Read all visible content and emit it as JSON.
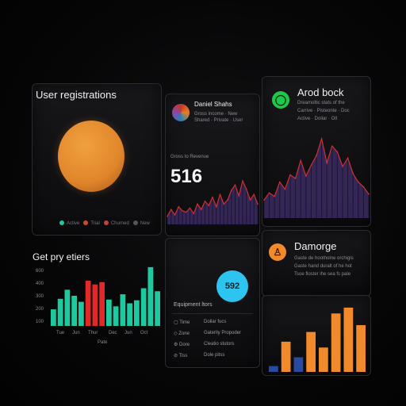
{
  "panels": {
    "user_registrations": {
      "title": "User registrations",
      "badge": "···",
      "legend": [
        {
          "label": "Active",
          "color": "#1ec9a0"
        },
        {
          "label": "Trial",
          "color": "#d04a2a"
        },
        {
          "label": "Churned",
          "color": "#c24141"
        },
        {
          "label": "New",
          "color": "#555"
        }
      ],
      "pie_color": "#e58a2a"
    },
    "profile": {
      "name": "Daniel Shahs",
      "line1": "Gross income · New",
      "line2": "Shared · Private · User"
    },
    "area_main": {
      "caption": "Gross to Revenue",
      "value": "516",
      "line_color": "#d03030",
      "fill_color": "#3a2a5a"
    },
    "arod_book": {
      "title": "Arod bock",
      "line1": "Dreamoltic stats of the",
      "line2": "Carrive · Pisteonte · Doc",
      "line3": "Active · Dollar · Oll",
      "icon_color": "#1ec94a"
    },
    "get_pyetiers": {
      "title": "Get pry etiers",
      "yticks": [
        "600",
        "400",
        "300",
        "200",
        "100"
      ],
      "xticks": [
        "Tue",
        "Jun",
        "Thur",
        "Dec",
        "Jun",
        "Oct",
        "Pate"
      ]
    },
    "list_panel": {
      "badge_value": "592",
      "badge_color": "#2ec4f0",
      "header": "Equipment ltors",
      "rows": [
        {
          "label": "Time",
          "value": "Dollar fucs"
        },
        {
          "label": "Zone",
          "value": "Gaterily Propoder"
        },
        {
          "label": "Dore",
          "value": "Cleatio stutors"
        },
        {
          "label": "Tiss",
          "value": "Dole pitss"
        }
      ]
    },
    "damorge": {
      "title": "Damorge",
      "line1": "Gaste de hootholne orchigis",
      "line2": "Gaste hand duralt of he hot",
      "line3": "Tsoe floster ihe sea fs pale",
      "icon_color": "#f08a2a"
    }
  },
  "chart_data": [
    {
      "type": "area",
      "title": "",
      "x": [
        1,
        2,
        3,
        4,
        5,
        6,
        7,
        8,
        9,
        10,
        11,
        12,
        13,
        14,
        15,
        16,
        17,
        18,
        19,
        20,
        21,
        22,
        23,
        24,
        25
      ],
      "values": [
        12,
        22,
        14,
        26,
        20,
        18,
        24,
        16,
        30,
        22,
        34,
        28,
        40,
        26,
        44,
        30,
        36,
        50,
        58,
        42,
        64,
        52,
        36,
        44,
        30
      ],
      "ylim": [
        0,
        70
      ]
    },
    {
      "type": "area",
      "title": "",
      "x": [
        1,
        2,
        3,
        4,
        5,
        6,
        7,
        8,
        9,
        10,
        11,
        12,
        13,
        14,
        15,
        16,
        17,
        18,
        19,
        20,
        21
      ],
      "values": [
        30,
        42,
        36,
        60,
        48,
        72,
        66,
        96,
        70,
        88,
        104,
        132,
        92,
        120,
        110,
        86,
        100,
        74,
        60,
        52,
        40
      ],
      "ylim": [
        0,
        140
      ]
    },
    {
      "type": "bar",
      "title": "",
      "categories": [
        "1",
        "2",
        "3",
        "4",
        "5",
        "6",
        "7",
        "8",
        "9",
        "10",
        "11",
        "12",
        "13",
        "14",
        "15",
        "16"
      ],
      "values": [
        22,
        36,
        48,
        40,
        32,
        60,
        55,
        58,
        35,
        26,
        42,
        30,
        34,
        50,
        78,
        46
      ],
      "colors": [
        "#1ec9a0",
        "#1ec9a0",
        "#1ec9a0",
        "#1ec9a0",
        "#1ec9a0",
        "#e02a2a",
        "#e02a2a",
        "#e02a2a",
        "#1ec9a0",
        "#1ec9a0",
        "#1ec9a0",
        "#1ec9a0",
        "#1ec9a0",
        "#1ec9a0",
        "#1ec9a0",
        "#1ec9a0"
      ],
      "ylim": [
        0,
        80
      ]
    },
    {
      "type": "bar",
      "title": "",
      "categories": [
        "1",
        "2",
        "3",
        "4",
        "5",
        "6",
        "7",
        "8"
      ],
      "values": [
        12,
        62,
        30,
        82,
        50,
        120,
        132,
        96
      ],
      "colors": [
        "#2a4aa0",
        "#f08a2a",
        "#2a4aa0",
        "#f08a2a",
        "#f08a2a",
        "#f08a2a",
        "#f08a2a",
        "#f08a2a"
      ],
      "ylim": [
        0,
        140
      ]
    }
  ]
}
